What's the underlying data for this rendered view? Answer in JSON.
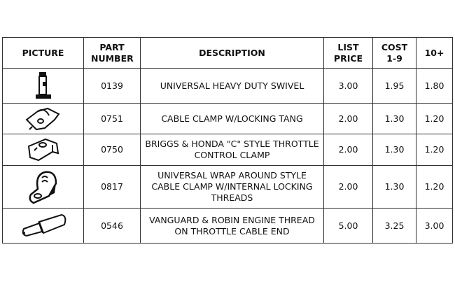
{
  "headers": [
    "PICTURE",
    "PART NUMBER",
    "DESCRIPTION",
    "LIST PRICE",
    "COST 1-9",
    "10+"
  ],
  "rows": [
    {
      "icon": "swivel-icon",
      "part": "0139",
      "desc": "UNIVERSAL HEAVY DUTY SWIVEL",
      "list": "3.00",
      "cost": "1.95",
      "ten": "1.80"
    },
    {
      "icon": "cable-clamp-tang-icon",
      "part": "0751",
      "desc": "CABLE CLAMP W/LOCKING TANG",
      "list": "2.00",
      "cost": "1.30",
      "ten": "1.20"
    },
    {
      "icon": "c-style-clamp-icon",
      "part": "0750",
      "desc": "BRIGGS & HONDA \"C\" STYLE THROTTLE CONTROL CLAMP",
      "list": "2.00",
      "cost": "1.30",
      "ten": "1.20"
    },
    {
      "icon": "wrap-around-clamp-icon",
      "part": "0817",
      "desc": "UNIVERSAL WRAP AROUND STYLE CABLE CLAMP W/INTERNAL LOCKING THREADS",
      "list": "2.00",
      "cost": "1.30",
      "ten": "1.20"
    },
    {
      "icon": "cable-end-icon",
      "part": "0546",
      "desc": "VANGUARD & ROBIN ENGINE THREAD ON THROTTLE CABLE END",
      "list": "5.00",
      "cost": "3.25",
      "ten": "3.00"
    }
  ]
}
